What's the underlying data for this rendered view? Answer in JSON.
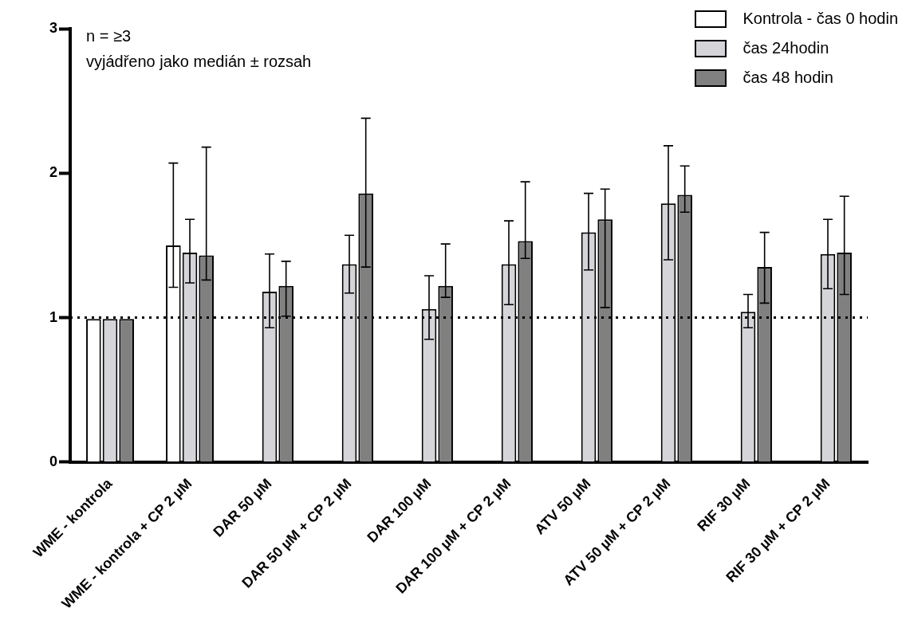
{
  "chart_data": {
    "type": "bar",
    "categories": [
      "WME - kontrola",
      "WME - kontrola + CP 2 µM",
      "DAR 50 µM",
      "DAR 50 µM + CP 2 µM",
      "DAR 100 µM",
      "DAR 100 µM + CP 2 µM",
      "ATV 50 µM",
      "ATV 50 µM + CP 2 µM",
      "RIF 30 µM",
      "RIF 30 µM + CP 2 µM"
    ],
    "series": [
      {
        "name": "Kontrola - čas 0 hodin",
        "color": "#ffffff",
        "values": [
          0.99,
          1.5,
          null,
          null,
          null,
          null,
          null,
          null,
          null,
          null
        ],
        "errors": [
          null,
          [
            1.21,
            2.07
          ],
          null,
          null,
          null,
          null,
          null,
          null,
          null,
          null
        ]
      },
      {
        "name": "čas 24hodin",
        "color": "#d4d4d9",
        "values": [
          0.99,
          1.45,
          1.18,
          1.37,
          1.06,
          1.37,
          1.59,
          1.79,
          1.04,
          1.44
        ],
        "errors": [
          null,
          [
            1.24,
            1.68
          ],
          [
            0.93,
            1.44
          ],
          [
            1.17,
            1.57
          ],
          [
            0.85,
            1.29
          ],
          [
            1.09,
            1.67
          ],
          [
            1.33,
            1.86
          ],
          [
            1.4,
            2.19
          ],
          [
            0.93,
            1.16
          ],
          [
            1.2,
            1.68
          ]
        ]
      },
      {
        "name": "čas 48 hodin",
        "color": "#808080",
        "values": [
          0.99,
          1.43,
          1.22,
          1.86,
          1.22,
          1.53,
          1.68,
          1.85,
          1.35,
          1.45
        ],
        "errors": [
          null,
          [
            1.26,
            2.18
          ],
          [
            1.01,
            1.39
          ],
          [
            1.35,
            2.38
          ],
          [
            1.14,
            1.51
          ],
          [
            1.41,
            1.94
          ],
          [
            1.07,
            1.89
          ],
          [
            1.73,
            2.05
          ],
          [
            1.1,
            1.59
          ],
          [
            1.16,
            1.84
          ]
        ]
      }
    ],
    "ylim": [
      0,
      3
    ],
    "yticks": [
      0,
      1,
      2,
      3
    ],
    "ref_lines": [
      {
        "axis": "y",
        "value": 1,
        "line_style": "dotted"
      }
    ],
    "annotations": [
      "n = ≥3",
      "vyjádřeno jako medián ± rozsah"
    ],
    "legend": "top right"
  }
}
